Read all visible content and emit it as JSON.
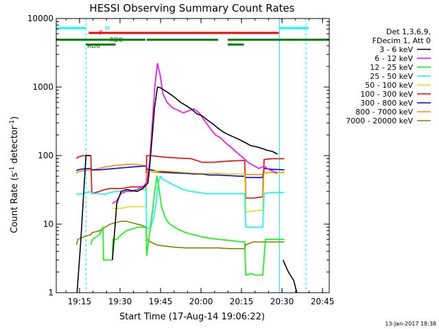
{
  "chart_data": {
    "type": "line",
    "title": "HESSI Observing Summary Count Rates",
    "xlabel": "Start Time (17-Aug-14 19:06:22)",
    "ylabel_main": "Count Rate (s",
    "ylabel_sup1": "-1",
    "ylabel_mid": " detector",
    "ylabel_sup2": "-1",
    "ylabel_end": ")",
    "yscale": "log",
    "ylim": [
      1,
      10000
    ],
    "xlim": [
      "19:06:22",
      "20:47:30"
    ],
    "x_ticks": [
      "19:15",
      "19:30",
      "19:45",
      "20:00",
      "20:15",
      "20:30",
      "20:45"
    ],
    "x_tick_minutes": [
      8.63,
      23.63,
      38.63,
      53.63,
      68.63,
      83.63,
      98.63
    ],
    "y_ticks": [
      "1",
      "10",
      "100",
      "1000",
      "10000"
    ],
    "y_tick_values": [
      1,
      10,
      100,
      1000,
      10000
    ],
    "legend_header": [
      "Det 1,3,6,9,",
      "FDecim 1, Att 0"
    ],
    "series": [
      {
        "name": "3 - 6 keV",
        "color": "#000000",
        "x": [
          0,
          7.3,
          7.7,
          9,
          11,
          12.8,
          13.2,
          16,
          17.5,
          19,
          20.8,
          22.4,
          24,
          26,
          28,
          30,
          32,
          34,
          34.6,
          35.6,
          36.4,
          37.5,
          38.5,
          40,
          42,
          44,
          46,
          48,
          50,
          52,
          54,
          56,
          58,
          60,
          62,
          64,
          66,
          68,
          70,
          72,
          74,
          76,
          78,
          80,
          82,
          82.7,
          84,
          86,
          88,
          89.1,
          89.6,
          101
        ],
        "y": [
          null,
          null,
          1,
          5,
          100,
          100,
          null,
          null,
          100,
          null,
          3,
          20,
          30,
          32,
          31,
          30,
          33,
          40,
          70,
          200,
          500,
          1000,
          980,
          900,
          800,
          700,
          600,
          540,
          480,
          410,
          380,
          330,
          290,
          250,
          220,
          200,
          185,
          170,
          155,
          140,
          135,
          128,
          120,
          115,
          105,
          null,
          3,
          2,
          1.5,
          1,
          null,
          null
        ]
      },
      {
        "name": "6 - 12 keV",
        "color": "#ff00ff",
        "x": [
          20.8,
          22.4,
          24,
          26,
          28,
          30,
          32,
          33.5,
          34.6,
          35.6,
          36.5,
          37.5,
          38.5,
          39.5,
          41,
          43,
          45,
          47,
          49,
          51,
          53,
          55,
          57,
          59,
          61,
          63,
          65,
          67,
          69,
          71,
          73,
          75,
          77,
          79,
          80,
          82
        ],
        "y": [
          20,
          22,
          28,
          30,
          30,
          32,
          35,
          40,
          80,
          300,
          1000,
          2200,
          1500,
          800,
          600,
          500,
          460,
          420,
          450,
          480,
          420,
          320,
          250,
          200,
          180,
          150,
          130,
          110,
          95,
          80,
          72,
          65,
          70,
          62,
          60,
          55
        ]
      },
      {
        "name": "12 - 25 keV",
        "color": "#00ff00",
        "x": [
          12.8,
          13.4,
          16,
          17.3,
          17.5,
          20.8,
          21,
          22.4,
          24,
          26,
          28,
          30,
          32,
          33.3,
          33.5,
          34.5,
          35.6,
          36.5,
          37.3,
          38.2,
          39,
          40.5,
          42,
          45,
          48,
          51,
          54,
          56,
          60,
          64,
          67,
          69.8,
          70.2,
          72,
          74,
          76.5,
          77.5,
          81,
          84.5
        ],
        "y": [
          5,
          6,
          7,
          9,
          3,
          3,
          6,
          6,
          7,
          8,
          8.5,
          9,
          9,
          9,
          3.5,
          7,
          15,
          30,
          50,
          30,
          18,
          12,
          10,
          8.5,
          7.5,
          7,
          6.5,
          6.3,
          6,
          5.8,
          5.6,
          5.5,
          1.8,
          1.9,
          1.8,
          1.8,
          6,
          6,
          6
        ]
      },
      {
        "name": "25 - 50 keV",
        "color": "#00ffff",
        "x": [
          7.5,
          8,
          10,
          12.8,
          13.2,
          16,
          18,
          20,
          22,
          24,
          26,
          28,
          30,
          32,
          33.3,
          33.5,
          35,
          36,
          37,
          37.8,
          38.6,
          39.5,
          41,
          43,
          45,
          47,
          50,
          53,
          55,
          58,
          62,
          66,
          69.8,
          70.2,
          73,
          76.5,
          77,
          80,
          84.5
        ],
        "y": [
          28,
          27,
          28,
          30,
          28,
          28,
          27,
          29,
          30,
          30,
          31,
          31,
          32,
          32,
          33,
          8.5,
          9,
          12,
          20,
          40,
          50,
          45,
          42,
          38,
          35,
          32,
          30,
          29,
          28,
          28,
          28,
          28,
          28,
          9,
          9,
          9,
          28,
          29,
          29
        ]
      },
      {
        "name": "50 - 100 keV",
        "color": "#dddd00",
        "x": [
          21,
          24,
          27,
          30,
          33.3,
          33.5,
          35,
          37,
          40,
          45,
          50,
          55,
          60,
          65,
          69.8,
          70.2,
          73,
          76.5,
          77,
          80,
          84.5
        ],
        "y": [
          17,
          17,
          18,
          18,
          18,
          55,
          58,
          60,
          60,
          58,
          56,
          55,
          54,
          54,
          54,
          15,
          15.5,
          16,
          55,
          56,
          56
        ]
      },
      {
        "name": "100 - 300 keV",
        "color": "#ff0000",
        "x": [
          7.5,
          8,
          10,
          12.8,
          13.2,
          16,
          18,
          20,
          22,
          24,
          26,
          28,
          30,
          32,
          33.3,
          33.5,
          35,
          37,
          40,
          45,
          50,
          52,
          54,
          58,
          62,
          66,
          69.8,
          70.2,
          73,
          76.5,
          77,
          80,
          84.5
        ],
        "y": [
          90,
          95,
          100,
          100,
          28,
          30,
          32,
          33,
          33,
          33,
          34,
          35,
          35,
          35,
          35,
          100,
          100,
          98,
          95,
          92,
          90,
          85,
          80,
          80,
          82,
          84,
          85,
          24,
          24,
          25,
          88,
          90,
          90
        ]
      },
      {
        "name": "300 - 800 keV",
        "color": "#0000ff",
        "x": [
          7.5,
          8,
          10,
          12.8,
          13.2,
          16,
          18,
          20,
          24,
          28,
          30,
          32,
          33.3,
          33.5,
          35,
          37,
          39,
          42,
          45,
          48,
          51,
          54,
          57,
          60,
          64,
          68,
          69.8,
          70.2,
          73,
          76.5,
          77,
          80,
          84.5
        ],
        "y": [
          60,
          62,
          64,
          65,
          62,
          62,
          63,
          64,
          66,
          68,
          69,
          70,
          70,
          64,
          62,
          60,
          58,
          57,
          56,
          55,
          54,
          54,
          52,
          52,
          51,
          50,
          50,
          48,
          48,
          48,
          65,
          63,
          62
        ]
      },
      {
        "name": "800 - 7000 keV",
        "color": "#ff8800",
        "x": [
          7.5,
          8,
          10,
          12.8,
          13.2,
          16,
          18,
          20,
          22,
          24,
          26,
          28,
          30,
          32,
          33.3,
          33.5,
          35,
          37,
          40,
          45,
          50,
          55,
          60,
          65,
          69.8,
          70.2,
          73,
          76.5,
          77,
          80,
          84.5
        ],
        "y": [
          55,
          58,
          60,
          62,
          62,
          65,
          68,
          70,
          72,
          73,
          74,
          75,
          74,
          72,
          70,
          60,
          58,
          57,
          56,
          55,
          55,
          55,
          55,
          54,
          54,
          53,
          53,
          53,
          56,
          57,
          57
        ]
      },
      {
        "name": "7000 - 20000 keV",
        "color": "#808000",
        "x": [
          7.5,
          8,
          10,
          12.8,
          13.2,
          16,
          18,
          20,
          22,
          24,
          26,
          28,
          30,
          32,
          33.3,
          33.5,
          35,
          37,
          40,
          44,
          48,
          52,
          56,
          60,
          64,
          68,
          69.8,
          70.2,
          73,
          76.5,
          77,
          80,
          84.5
        ],
        "y": [
          5,
          6,
          6.5,
          7,
          7.5,
          8,
          9,
          10,
          10.5,
          11,
          11,
          10.5,
          10,
          9.5,
          9,
          6,
          5.5,
          5,
          4.8,
          4.6,
          4.5,
          4.5,
          4.5,
          4.5,
          4.4,
          4.4,
          4.4,
          5,
          5.5,
          5.5,
          5.5,
          5.5,
          5.5
        ]
      }
    ],
    "cyan_dashed_lines_min": [
      11,
      92.5
    ],
    "cyan_solid_lines_min": [
      0,
      82.7
    ],
    "annotations": {
      "night": {
        "label": "N",
        "color": "#00ffff",
        "segments": [
          [
            0,
            11
          ],
          [
            82.7,
            93.5
          ]
        ]
      },
      "saa_flag": {
        "label": "F",
        "color": "#ff0000",
        "segments": [
          [
            12,
            82.5
          ]
        ]
      },
      "rd0": {
        "label": "RD0",
        "color": "#007700",
        "segments": [
          [
            0,
            33
          ],
          [
            33.5,
            60
          ],
          [
            63.5,
            101
          ]
        ]
      },
      "rd6": {
        "label": "RD6",
        "color": "#007700",
        "segments": [
          [
            11,
            22
          ],
          [
            63.5,
            69.5
          ]
        ]
      }
    },
    "grid": false,
    "legend_position": "right"
  },
  "footer": {
    "stamp": "13-Jan-2017 18:38"
  }
}
